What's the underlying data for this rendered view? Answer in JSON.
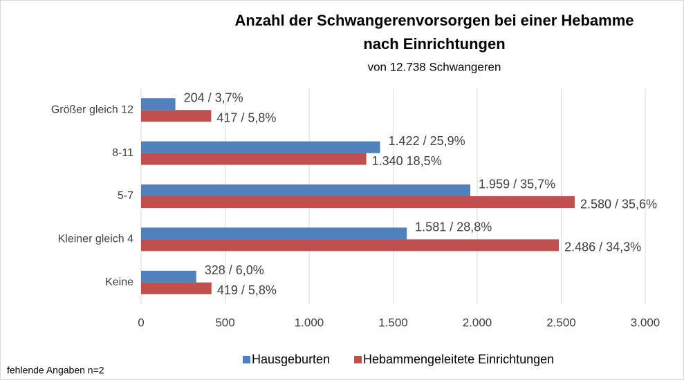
{
  "chart_data": {
    "type": "barh",
    "title": "Anzahl der Schwangerenvorsorgen bei einer Hebamme nach Einrichtungen",
    "subtitle": "von 12.738 Schwangeren",
    "categories": [
      "Größer gleich 12",
      "8-11",
      "5-7",
      "Kleiner gleich 4",
      "Keine"
    ],
    "series": [
      {
        "name": "Hausgeburten",
        "color": "#4f81bd",
        "values": [
          204,
          1422,
          1959,
          1581,
          328
        ],
        "value_labels": [
          "204 / 3,7%",
          "1.422 / 25,9%",
          "1.959 / 35,7%",
          "1.581 / 28,8%",
          "328 / 6,0%"
        ]
      },
      {
        "name": "Hebammengeleitete Einrichtungen",
        "color": "#c0504d",
        "values": [
          417,
          1340,
          2580,
          2486,
          419
        ],
        "value_labels": [
          "417 / 5,8%",
          "1.340 18,5%",
          "2.580 / 35,6%",
          "2.486 / 34,3%",
          "419 / 5,8%"
        ]
      }
    ],
    "xlim": [
      0,
      3000
    ],
    "xticks": [
      0,
      500,
      {
        "value": 1000,
        "label": "1.000"
      },
      {
        "value": 1500,
        "label": "1.500"
      },
      {
        "value": 2000,
        "label": "2.000"
      },
      {
        "value": 2500,
        "label": "2.500"
      },
      {
        "value": 3000,
        "label": "3.000"
      }
    ],
    "grid": true,
    "legend": "bottom",
    "note": "fehlende Angaben n=2"
  }
}
